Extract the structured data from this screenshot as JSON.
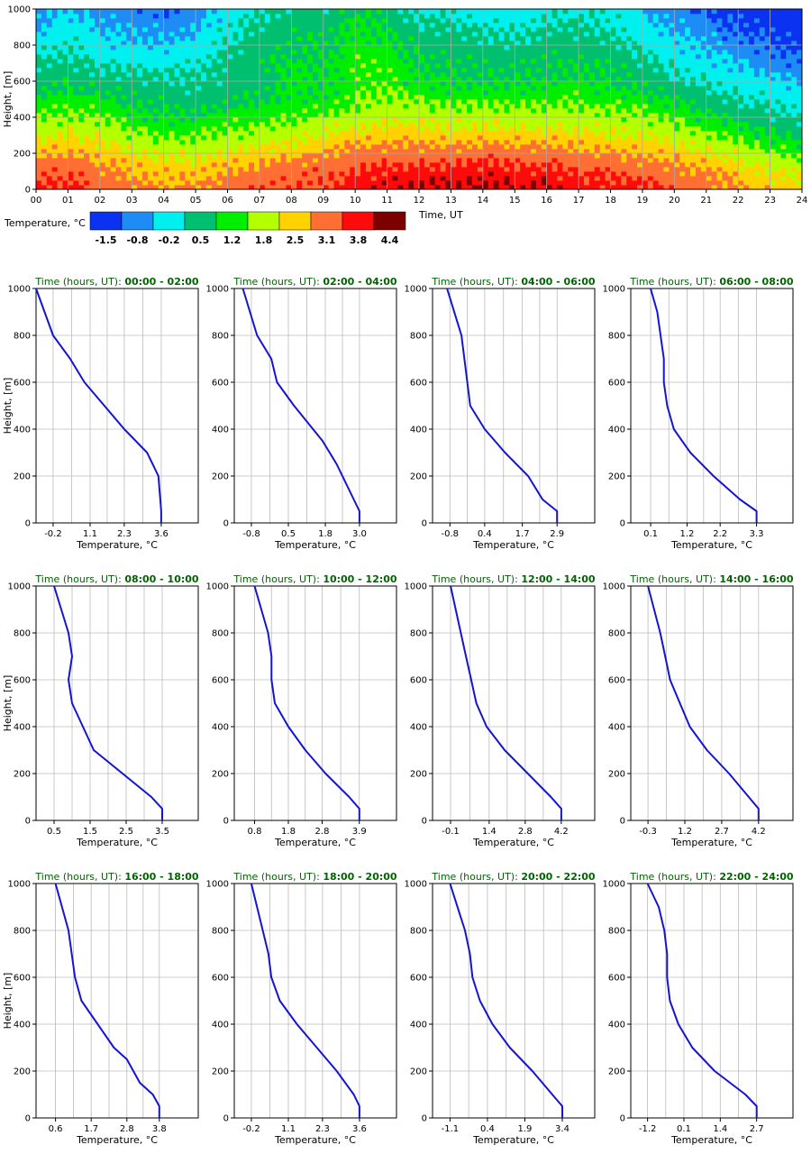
{
  "colors": {
    "profile_line": "#1414d2",
    "title_text": "#006400",
    "grid": "#bbbbbb",
    "axis": "#000000",
    "scale": [
      "#0a32f0",
      "#1e8cf5",
      "#00f0f0",
      "#00c070",
      "#00ee00",
      "#b4ff00",
      "#ffd200",
      "#ff6e32",
      "#ff0a0a",
      "#7d0000"
    ]
  },
  "chart_data": [
    {
      "type": "heatmap",
      "title": "",
      "xlabel": "Time, UT",
      "ylabel": "Height, [m]",
      "xlim": [
        0,
        24
      ],
      "ylim": [
        0,
        1000
      ],
      "x_ticks": [
        "00",
        "01",
        "02",
        "03",
        "04",
        "05",
        "06",
        "07",
        "08",
        "09",
        "10",
        "11",
        "12",
        "13",
        "14",
        "15",
        "16",
        "17",
        "18",
        "19",
        "20",
        "21",
        "22",
        "23",
        "24"
      ],
      "y_ticks": [
        0,
        200,
        400,
        600,
        800,
        1000
      ],
      "grid": true,
      "colorbar": {
        "label": "Temperature, °C",
        "levels": [
          "-1.5",
          "-0.8",
          "-0.2",
          "0.5",
          "1.2",
          "1.8",
          "2.5",
          "3.1",
          "3.8",
          "4.4"
        ]
      },
      "time_hours": [
        0,
        1,
        2,
        3,
        4,
        5,
        6,
        7,
        8,
        9,
        10,
        11,
        12,
        13,
        14,
        15,
        16,
        17,
        18,
        19,
        20,
        21,
        22,
        23,
        24
      ],
      "heights_m": [
        0,
        100,
        200,
        300,
        400,
        500,
        600,
        700,
        800,
        900,
        1000
      ],
      "values": [
        [
          3.5,
          3.2,
          2.6,
          2.0,
          1.4,
          1.0,
          0.6,
          0.2,
          -0.2,
          -0.6,
          -0.8
        ],
        [
          3.6,
          3.3,
          2.8,
          2.2,
          1.6,
          1.1,
          0.7,
          0.4,
          0.1,
          -0.2,
          -0.5
        ],
        [
          3.2,
          3.0,
          2.6,
          2.0,
          1.5,
          1.0,
          0.5,
          0.0,
          -0.3,
          -0.5,
          -0.8
        ],
        [
          3.0,
          2.7,
          2.2,
          1.6,
          1.1,
          0.7,
          0.4,
          0.0,
          -0.4,
          -0.7,
          -1.0
        ],
        [
          2.9,
          2.5,
          2.0,
          1.4,
          0.9,
          0.6,
          0.3,
          -0.1,
          -0.5,
          -0.8,
          -1.2
        ],
        [
          2.9,
          2.5,
          2.0,
          1.4,
          0.9,
          0.4,
          0.2,
          0.0,
          -0.3,
          -0.6,
          -0.9
        ],
        [
          3.1,
          2.8,
          2.2,
          1.6,
          1.1,
          0.7,
          0.5,
          0.4,
          0.2,
          0.0,
          -0.3
        ],
        [
          3.3,
          3.0,
          2.4,
          1.8,
          1.2,
          0.8,
          0.6,
          0.6,
          0.4,
          0.3,
          0.1
        ],
        [
          3.4,
          3.1,
          2.5,
          1.9,
          1.4,
          1.0,
          0.9,
          0.9,
          0.8,
          0.6,
          0.5
        ],
        [
          3.5,
          3.3,
          2.8,
          2.1,
          1.5,
          1.0,
          0.9,
          0.9,
          0.8,
          0.6,
          0.4
        ],
        [
          3.7,
          3.5,
          3.0,
          2.4,
          1.8,
          1.4,
          1.3,
          1.2,
          1.1,
          0.9,
          0.8
        ],
        [
          3.9,
          3.6,
          3.1,
          2.5,
          1.9,
          1.5,
          1.3,
          1.2,
          1.0,
          0.8,
          0.6
        ],
        [
          4.2,
          3.7,
          3.1,
          2.5,
          1.9,
          1.4,
          1.0,
          0.8,
          0.6,
          0.3,
          0.0
        ],
        [
          4.2,
          3.7,
          3.1,
          2.4,
          1.8,
          1.3,
          0.9,
          0.8,
          0.5,
          0.3,
          -0.1
        ],
        [
          4.2,
          3.8,
          3.2,
          2.5,
          1.8,
          1.3,
          0.8,
          0.6,
          0.4,
          0.1,
          -0.2
        ],
        [
          4.1,
          3.7,
          3.1,
          2.4,
          1.8,
          1.3,
          0.8,
          0.6,
          0.3,
          0.0,
          -0.3
        ],
        [
          4.1,
          3.7,
          3.1,
          2.4,
          1.8,
          1.3,
          0.9,
          0.7,
          0.5,
          0.2,
          -0.1
        ],
        [
          3.8,
          3.4,
          2.9,
          2.3,
          1.8,
          1.3,
          1.0,
          0.8,
          0.6,
          0.3,
          0.1
        ],
        [
          3.7,
          3.4,
          2.8,
          2.2,
          1.7,
          1.2,
          0.9,
          0.7,
          0.4,
          0.1,
          -0.1
        ],
        [
          3.6,
          3.2,
          2.7,
          2.1,
          1.6,
          1.1,
          0.6,
          0.3,
          0.0,
          -0.3,
          -0.6
        ],
        [
          3.4,
          3.0,
          2.5,
          1.9,
          1.3,
          0.8,
          0.3,
          0.0,
          -0.3,
          -0.6,
          -0.9
        ],
        [
          3.2,
          2.8,
          2.2,
          1.6,
          1.0,
          0.5,
          0.1,
          -0.3,
          -0.6,
          -0.9,
          -1.2
        ],
        [
          2.8,
          2.5,
          1.9,
          1.2,
          0.6,
          0.2,
          -0.2,
          -0.6,
          -0.9,
          -1.2,
          -1.4
        ],
        [
          2.6,
          2.2,
          1.5,
          0.9,
          0.4,
          0.0,
          -0.4,
          -0.8,
          -1.1,
          -1.4,
          -1.6
        ],
        [
          2.5,
          2.0,
          1.3,
          0.7,
          0.2,
          -0.2,
          -0.6,
          -1.0,
          -1.3,
          -1.6,
          -1.8
        ]
      ]
    },
    {
      "type": "line",
      "title_prefix": "Time (hours, UT):",
      "xlabel": "Temperature, °C",
      "ylabel": "Height, [m]",
      "y_ticks": [
        0,
        200,
        400,
        600,
        800,
        1000
      ],
      "ylim": [
        0,
        1000
      ],
      "grid": true,
      "panels": [
        {
          "period": "00:00 - 02:00",
          "x_ticks": [
            -0.2,
            1.1,
            2.3,
            3.6
          ],
          "xlim": [
            -0.8,
            4.9
          ],
          "profile": [
            [
              3.6,
              0
            ],
            [
              3.6,
              50
            ],
            [
              3.5,
              200
            ],
            [
              3.1,
              300
            ],
            [
              2.3,
              400
            ],
            [
              1.6,
              500
            ],
            [
              0.9,
              600
            ],
            [
              0.4,
              700
            ],
            [
              -0.2,
              800
            ],
            [
              -0.8,
              1000
            ]
          ]
        },
        {
          "period": "02:00 - 04:00",
          "x_ticks": [
            -0.8,
            0.5,
            1.8,
            3.0
          ],
          "xlim": [
            -1.4,
            4.3
          ],
          "profile": [
            [
              3.0,
              0
            ],
            [
              3.0,
              50
            ],
            [
              2.6,
              150
            ],
            [
              2.2,
              250
            ],
            [
              1.7,
              350
            ],
            [
              0.7,
              500
            ],
            [
              0.1,
              600
            ],
            [
              -0.1,
              700
            ],
            [
              -0.6,
              800
            ],
            [
              -1.1,
              1000
            ]
          ]
        },
        {
          "period": "04:00 - 06:00",
          "x_ticks": [
            -0.8,
            0.4,
            1.7,
            2.9
          ],
          "xlim": [
            -1.4,
            4.2
          ],
          "profile": [
            [
              2.9,
              0
            ],
            [
              2.9,
              50
            ],
            [
              2.4,
              100
            ],
            [
              1.9,
              200
            ],
            [
              1.1,
              300
            ],
            [
              0.4,
              400
            ],
            [
              -0.1,
              500
            ],
            [
              -0.2,
              600
            ],
            [
              -0.4,
              800
            ],
            [
              -0.9,
              1000
            ]
          ]
        },
        {
          "period": "06:00 - 08:00",
          "x_ticks": [
            0.1,
            1.2,
            2.2,
            3.3
          ],
          "xlim": [
            -0.5,
            4.4
          ],
          "profile": [
            [
              3.3,
              0
            ],
            [
              3.3,
              50
            ],
            [
              2.8,
              100
            ],
            [
              2.0,
              200
            ],
            [
              1.3,
              300
            ],
            [
              0.8,
              400
            ],
            [
              0.6,
              500
            ],
            [
              0.5,
              600
            ],
            [
              0.5,
              700
            ],
            [
              0.3,
              900
            ],
            [
              0.1,
              1000
            ]
          ]
        },
        {
          "period": "08:00 - 10:00",
          "x_ticks": [
            0.5,
            1.5,
            2.5,
            3.5
          ],
          "xlim": [
            0.0,
            4.5
          ],
          "profile": [
            [
              3.5,
              0
            ],
            [
              3.5,
              50
            ],
            [
              3.2,
              100
            ],
            [
              2.4,
              200
            ],
            [
              1.6,
              300
            ],
            [
              1.3,
              400
            ],
            [
              1.0,
              500
            ],
            [
              0.9,
              600
            ],
            [
              1.0,
              700
            ],
            [
              0.9,
              800
            ],
            [
              0.5,
              1000
            ]
          ]
        },
        {
          "period": "10:00 - 12:00",
          "x_ticks": [
            0.8,
            1.8,
            2.8,
            3.9
          ],
          "xlim": [
            0.2,
            5.0
          ],
          "profile": [
            [
              3.9,
              0
            ],
            [
              3.9,
              50
            ],
            [
              3.6,
              100
            ],
            [
              2.9,
              200
            ],
            [
              2.3,
              300
            ],
            [
              1.8,
              400
            ],
            [
              1.4,
              500
            ],
            [
              1.3,
              600
            ],
            [
              1.3,
              700
            ],
            [
              1.2,
              800
            ],
            [
              0.8,
              1000
            ]
          ]
        },
        {
          "period": "12:00 - 14:00",
          "x_ticks": [
            -0.1,
            1.4,
            2.8,
            4.2
          ],
          "xlim": [
            -0.8,
            5.5
          ],
          "profile": [
            [
              4.2,
              0
            ],
            [
              4.2,
              50
            ],
            [
              3.8,
              100
            ],
            [
              2.9,
              200
            ],
            [
              2.0,
              300
            ],
            [
              1.3,
              400
            ],
            [
              0.9,
              500
            ],
            [
              0.7,
              600
            ],
            [
              0.5,
              700
            ],
            [
              0.3,
              800
            ],
            [
              -0.1,
              1000
            ]
          ]
        },
        {
          "period": "14:00 - 16:00",
          "x_ticks": [
            -0.3,
            1.2,
            2.7,
            4.2
          ],
          "xlim": [
            -1.0,
            5.6
          ],
          "profile": [
            [
              4.2,
              0
            ],
            [
              4.2,
              50
            ],
            [
              3.8,
              100
            ],
            [
              3.0,
              200
            ],
            [
              2.1,
              300
            ],
            [
              1.4,
              400
            ],
            [
              1.0,
              500
            ],
            [
              0.6,
              600
            ],
            [
              0.4,
              700
            ],
            [
              0.2,
              800
            ],
            [
              -0.3,
              1000
            ]
          ]
        },
        {
          "period": "16:00 - 18:00",
          "x_ticks": [
            0.6,
            1.7,
            2.8,
            3.8
          ],
          "xlim": [
            0.0,
            5.0
          ],
          "profile": [
            [
              3.8,
              0
            ],
            [
              3.8,
              50
            ],
            [
              3.6,
              100
            ],
            [
              3.2,
              150
            ],
            [
              2.8,
              250
            ],
            [
              2.4,
              300
            ],
            [
              1.9,
              400
            ],
            [
              1.4,
              500
            ],
            [
              1.2,
              600
            ],
            [
              1.1,
              700
            ],
            [
              1.0,
              800
            ],
            [
              0.6,
              1000
            ]
          ]
        },
        {
          "period": "18:00 - 20:00",
          "x_ticks": [
            -0.2,
            1.1,
            2.3,
            3.6
          ],
          "xlim": [
            -0.8,
            4.9
          ],
          "profile": [
            [
              3.6,
              0
            ],
            [
              3.6,
              50
            ],
            [
              3.4,
              100
            ],
            [
              2.8,
              200
            ],
            [
              2.1,
              300
            ],
            [
              1.4,
              400
            ],
            [
              0.8,
              500
            ],
            [
              0.5,
              600
            ],
            [
              0.4,
              700
            ],
            [
              0.2,
              800
            ],
            [
              -0.2,
              1000
            ]
          ]
        },
        {
          "period": "20:00 - 22:00",
          "x_ticks": [
            -1.1,
            0.4,
            1.9,
            3.4
          ],
          "xlim": [
            -1.8,
            4.7
          ],
          "profile": [
            [
              3.4,
              0
            ],
            [
              3.4,
              50
            ],
            [
              3.0,
              100
            ],
            [
              2.2,
              200
            ],
            [
              1.3,
              300
            ],
            [
              0.6,
              400
            ],
            [
              0.1,
              500
            ],
            [
              -0.2,
              600
            ],
            [
              -0.3,
              700
            ],
            [
              -0.5,
              800
            ],
            [
              -1.1,
              1000
            ]
          ]
        },
        {
          "period": "22:00 - 24:00",
          "x_ticks": [
            -1.2,
            0.1,
            1.4,
            2.7
          ],
          "xlim": [
            -1.8,
            4.0
          ],
          "profile": [
            [
              2.7,
              0
            ],
            [
              2.7,
              50
            ],
            [
              2.3,
              100
            ],
            [
              1.2,
              200
            ],
            [
              0.4,
              300
            ],
            [
              -0.1,
              400
            ],
            [
              -0.4,
              500
            ],
            [
              -0.5,
              600
            ],
            [
              -0.5,
              700
            ],
            [
              -0.6,
              800
            ],
            [
              -0.8,
              900
            ],
            [
              -1.2,
              1000
            ]
          ]
        }
      ]
    }
  ]
}
